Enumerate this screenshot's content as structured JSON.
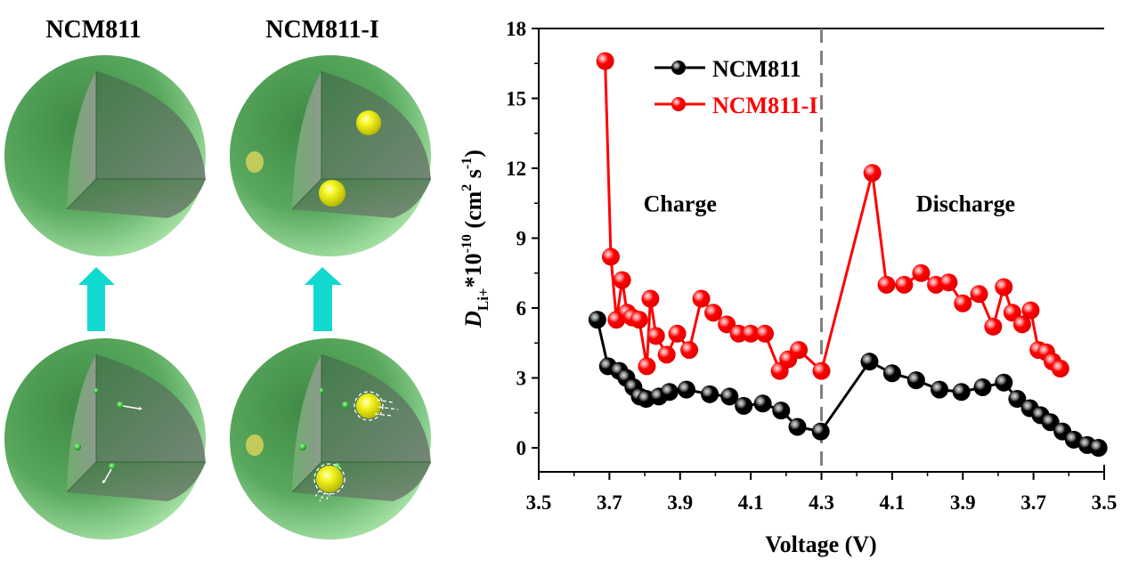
{
  "illustration": {
    "panels": [
      {
        "title": "NCM811",
        "yellow_particles": false
      },
      {
        "title": "NCM811-I",
        "yellow_particles": true
      }
    ],
    "colors": {
      "sphere": "#5faa62",
      "arrow": "#12d9cf",
      "particle": "#f2f21a"
    }
  },
  "chart_data": {
    "type": "line",
    "xlabel": "Voltage (V)",
    "ylabel_main": "D",
    "ylabel_sub": "Li+",
    "ylabel_rest": "*10",
    "ylabel_exp": "-10",
    "ylabel_unit_open": " (cm",
    "ylabel_unit_sq": "2",
    "ylabel_unit_s": " s",
    "ylabel_unit_exp": "-1",
    "ylabel_unit_close": ")",
    "xlim_positions": [
      0,
      8
    ],
    "x_tick_labels": [
      "3.5",
      "3.7",
      "3.9",
      "4.1",
      "4.3",
      "4.1",
      "3.9",
      "3.7",
      "3.5"
    ],
    "ylim": [
      -1,
      18
    ],
    "y_ticks": [
      0,
      3,
      6,
      9,
      12,
      15,
      18
    ],
    "y_tick_labels": [
      "0",
      "3",
      "6",
      "9",
      "12",
      "15",
      "18"
    ],
    "divider_position": 4,
    "annotations": [
      {
        "text": "Charge",
        "x_pos": 2.0,
        "y": 10.5
      },
      {
        "text": "Discharge",
        "x_pos": 6.04,
        "y": 10.5
      }
    ],
    "legend_position": "top-left",
    "series": [
      {
        "name": "NCM811",
        "color": "#000000",
        "x_pos": [
          0.83,
          0.98,
          1.14,
          1.24,
          1.34,
          1.43,
          1.52,
          1.7,
          1.85,
          2.09,
          2.42,
          2.7,
          2.9,
          3.17,
          3.43,
          3.66,
          3.99,
          4.68,
          5.0,
          5.34,
          5.67,
          5.98,
          6.28,
          6.58,
          6.77,
          6.95,
          7.1,
          7.24,
          7.41,
          7.57,
          7.76,
          7.92
        ],
        "values": [
          5.5,
          3.5,
          3.3,
          3.0,
          2.6,
          2.2,
          2.1,
          2.2,
          2.4,
          2.5,
          2.3,
          2.2,
          1.8,
          1.9,
          1.6,
          0.9,
          0.7,
          3.7,
          3.2,
          2.9,
          2.5,
          2.4,
          2.6,
          2.8,
          2.1,
          1.7,
          1.4,
          1.1,
          0.7,
          0.35,
          0.12,
          0.0
        ]
      },
      {
        "name": "NCM811-I",
        "color": "#ff0000",
        "x_pos": [
          0.94,
          1.02,
          1.1,
          1.18,
          1.25,
          1.32,
          1.42,
          1.53,
          1.58,
          1.66,
          1.81,
          1.96,
          2.13,
          2.3,
          2.47,
          2.66,
          2.83,
          3.0,
          3.2,
          3.41,
          3.53,
          3.68,
          4.0,
          4.72,
          4.92,
          5.17,
          5.41,
          5.62,
          5.8,
          6.0,
          6.23,
          6.43,
          6.58,
          6.7,
          6.84,
          6.96,
          7.07,
          7.18,
          7.27,
          7.38
        ],
        "values": [
          16.6,
          8.2,
          5.5,
          7.2,
          5.8,
          5.6,
          5.5,
          3.5,
          6.4,
          4.8,
          4.0,
          4.9,
          4.2,
          6.4,
          5.8,
          5.3,
          4.9,
          4.9,
          4.9,
          3.3,
          3.8,
          4.2,
          3.3,
          11.8,
          7.0,
          7.0,
          7.5,
          7.0,
          7.1,
          6.2,
          6.6,
          5.2,
          6.9,
          5.8,
          5.3,
          5.9,
          4.2,
          4.1,
          3.7,
          3.4
        ]
      }
    ]
  }
}
